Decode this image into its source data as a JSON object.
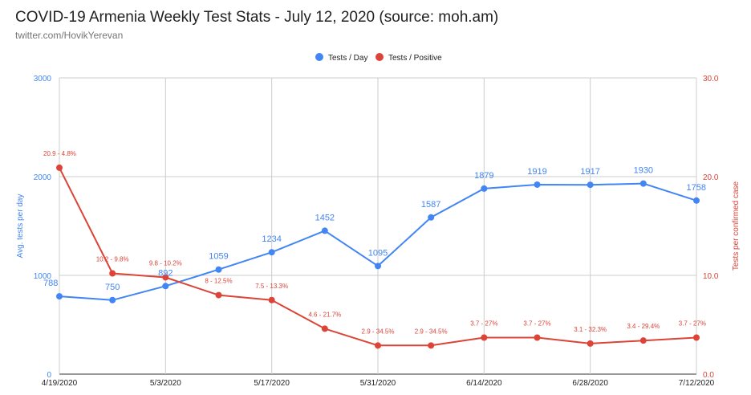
{
  "chart_data": {
    "type": "line",
    "title": "COVID-19 Armenia Weekly Test Stats - July 12, 2020 (source: moh.am)",
    "subtitle": "twitter.com/HovikYerevan",
    "x": [
      "4/19/2020",
      "4/26/2020",
      "5/3/2020",
      "5/10/2020",
      "5/17/2020",
      "5/24/2020",
      "5/31/2020",
      "6/7/2020",
      "6/14/2020",
      "6/21/2020",
      "6/28/2020",
      "7/5/2020",
      "7/12/2020"
    ],
    "x_tick_labels": [
      "4/19/2020",
      "5/3/2020",
      "5/17/2020",
      "5/31/2020",
      "6/14/2020",
      "6/28/2020",
      "7/12/2020"
    ],
    "left_axis": {
      "label": "Avg. tests per day",
      "range": [
        0,
        3000
      ],
      "ticks": [
        "0",
        "1000",
        "2000",
        "3000"
      ],
      "color": "#4285f4"
    },
    "right_axis": {
      "label": "Tests per confirmed case",
      "range": [
        0,
        30
      ],
      "ticks": [
        "0.0",
        "10.0",
        "20.0",
        "30.0"
      ],
      "color": "#db4437"
    },
    "series": [
      {
        "name": "Tests / Day",
        "axis": "left",
        "color": "#4285f4",
        "values": [
          788,
          750,
          892,
          1059,
          1234,
          1452,
          1095,
          1587,
          1879,
          1919,
          1917,
          1930,
          1758
        ],
        "labels": [
          "788",
          "750",
          "892",
          "1059",
          "1234",
          "1452",
          "1095",
          "1587",
          "1879",
          "1919",
          "1917",
          "1930",
          "1758"
        ]
      },
      {
        "name": "Tests / Positive",
        "axis": "right",
        "color": "#db4437",
        "values": [
          20.9,
          10.2,
          9.8,
          8.0,
          7.5,
          4.6,
          2.9,
          2.9,
          3.7,
          3.7,
          3.1,
          3.4,
          3.7
        ],
        "labels": [
          "20.9 - 4.8%",
          "10.2 - 9.8%",
          "9.8 - 10.2%",
          "8 - 12.5%",
          "7.5 - 13.3%",
          "4.6 - 21.7%",
          "2.9 - 34.5%",
          "2.9 - 34.5%",
          "3.7 - 27%",
          "3.7 - 27%",
          "3.1 - 32.3%",
          "3.4 - 29.4%",
          "3.7 - 27%"
        ]
      }
    ],
    "legend_position": "top-center",
    "grid": true
  }
}
